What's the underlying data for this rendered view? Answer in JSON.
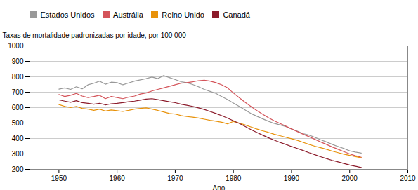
{
  "chart_data": {
    "type": "line",
    "xlabel": "Ano",
    "ylabel": "Taxas de mortalidade padronizadas por idade, por 100 000",
    "x": [
      1950,
      1951,
      1952,
      1953,
      1954,
      1955,
      1956,
      1957,
      1958,
      1959,
      1960,
      1961,
      1962,
      1963,
      1964,
      1965,
      1966,
      1967,
      1968,
      1969,
      1970,
      1971,
      1972,
      1973,
      1974,
      1975,
      1976,
      1977,
      1978,
      1979,
      1980,
      1981,
      1982,
      1983,
      1984,
      1985,
      1986,
      1987,
      1988,
      1989,
      1990,
      1991,
      1992,
      1993,
      1994,
      1995,
      1996,
      1997,
      1998,
      1999,
      2000,
      2001,
      2002
    ],
    "series": [
      {
        "name": "Estados Unidos",
        "color": "#999999",
        "values": [
          720,
          728,
          718,
          735,
          722,
          748,
          758,
          772,
          752,
          765,
          762,
          748,
          760,
          772,
          780,
          788,
          798,
          788,
          808,
          795,
          782,
          768,
          762,
          750,
          735,
          718,
          705,
          692,
          672,
          652,
          630,
          608,
          585,
          562,
          545,
          528,
          512,
          498,
          488,
          478,
          462,
          448,
          432,
          422,
          408,
          392,
          378,
          362,
          348,
          335,
          320,
          312,
          305
        ]
      },
      {
        "name": "Austrália",
        "color": "#d4545a",
        "values": [
          685,
          672,
          680,
          692,
          675,
          665,
          672,
          680,
          658,
          672,
          665,
          658,
          668,
          675,
          688,
          695,
          708,
          718,
          728,
          738,
          748,
          758,
          762,
          768,
          775,
          778,
          772,
          762,
          748,
          728,
          695,
          665,
          635,
          608,
          582,
          558,
          535,
          515,
          498,
          480,
          462,
          445,
          428,
          412,
          395,
          378,
          362,
          345,
          330,
          315,
          300,
          288,
          278
        ]
      },
      {
        "name": "Reino Unido",
        "color": "#e8920a",
        "values": [
          620,
          608,
          600,
          608,
          595,
          590,
          582,
          590,
          578,
          585,
          580,
          575,
          582,
          590,
          595,
          598,
          590,
          582,
          572,
          562,
          558,
          548,
          542,
          538,
          532,
          525,
          518,
          512,
          505,
          495,
          510,
          500,
          488,
          475,
          462,
          450,
          440,
          428,
          418,
          408,
          398,
          388,
          375,
          362,
          350,
          340,
          330,
          318,
          308,
          298,
          290,
          282,
          275
        ]
      },
      {
        "name": "Canadá",
        "color": "#8b1a2a",
        "values": [
          650,
          642,
          635,
          645,
          632,
          628,
          622,
          628,
          618,
          625,
          628,
          632,
          638,
          642,
          648,
          655,
          658,
          652,
          645,
          638,
          632,
          622,
          615,
          608,
          598,
          588,
          575,
          562,
          548,
          532,
          515,
          498,
          478,
          458,
          440,
          422,
          405,
          390,
          375,
          362,
          348,
          335,
          322,
          308,
          295,
          282,
          270,
          258,
          248,
          238,
          228,
          220,
          212
        ]
      }
    ],
    "xlim": [
      1945,
      2010
    ],
    "xticks": [
      1950,
      1960,
      1970,
      1980,
      1990,
      2000,
      2010
    ],
    "ylim": [
      200,
      1000
    ],
    "yticks": [
      200,
      300,
      400,
      500,
      600,
      700,
      800,
      900,
      1000
    ],
    "grid": true,
    "legend": "upper left"
  }
}
